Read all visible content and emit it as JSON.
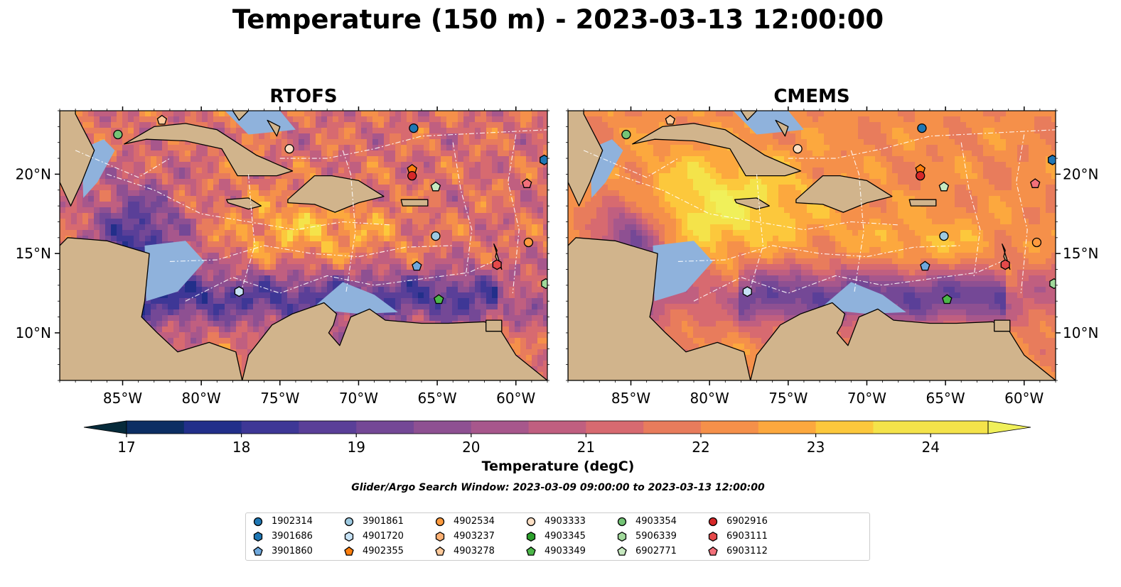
{
  "figure": {
    "title": "Temperature (150 m) - 2023-03-13 12:00:00",
    "panels": [
      "RTOFS",
      "CMEMS"
    ],
    "lon_ticks": [
      "85°W",
      "80°W",
      "75°W",
      "70°W",
      "65°W",
      "60°W"
    ],
    "lat_ticks": [
      "20°N",
      "15°N",
      "10°N"
    ],
    "colorbar": {
      "label": "Temperature (degC)",
      "ticks": [
        "17",
        "18",
        "19",
        "20",
        "21",
        "22",
        "23",
        "24"
      ],
      "min": 16.75,
      "max": 24.5,
      "step": 0.5,
      "colormap": "thermal",
      "colors": [
        "#062a3a",
        "#0c2e63",
        "#222f8a",
        "#3e3796",
        "#5a3f98",
        "#744896",
        "#8e5092",
        "#a7578c",
        "#c05f80",
        "#d76a70",
        "#e87c5c",
        "#f5904a",
        "#fca83e",
        "#fcc83c",
        "#f4e34a",
        "#f0f05a"
      ]
    },
    "search_window": "Glider/Argo Search Window: 2023-03-09 09:00:00 to 2023-03-13 12:00:00"
  },
  "map_colors": {
    "land": "#d1b48c",
    "shelf": "#8fb2dc",
    "deep_fill": "#062a3a",
    "eez_lines": "#ffffff"
  },
  "legend": {
    "items": [
      {
        "id": "1902314",
        "shape": "circle",
        "color": "#1f77b4"
      },
      {
        "id": "3901686",
        "shape": "hexagon",
        "color": "#1f77b4"
      },
      {
        "id": "3901860",
        "shape": "pentagon",
        "color": "#6fa8dc"
      },
      {
        "id": "3901861",
        "shape": "circle",
        "color": "#9ecae1"
      },
      {
        "id": "4901720",
        "shape": "hexagon",
        "color": "#c6e2f5"
      },
      {
        "id": "4902355",
        "shape": "pentagon",
        "color": "#ff7f0e"
      },
      {
        "id": "4902534",
        "shape": "circle",
        "color": "#fd9a3e"
      },
      {
        "id": "4903237",
        "shape": "hexagon",
        "color": "#fdb174"
      },
      {
        "id": "4903278",
        "shape": "pentagon",
        "color": "#fdc99a"
      },
      {
        "id": "4903333",
        "shape": "circle",
        "color": "#fde0c5"
      },
      {
        "id": "4903345",
        "shape": "hexagon",
        "color": "#2ca02c"
      },
      {
        "id": "4903349",
        "shape": "pentagon",
        "color": "#4cb749"
      },
      {
        "id": "4903354",
        "shape": "circle",
        "color": "#74c476"
      },
      {
        "id": "5906339",
        "shape": "hexagon",
        "color": "#a1d99b"
      },
      {
        "id": "6902771",
        "shape": "pentagon",
        "color": "#c7e9c0"
      },
      {
        "id": "6902916",
        "shape": "circle",
        "color": "#d62728"
      },
      {
        "id": "6903111",
        "shape": "hexagon",
        "color": "#e5494a"
      },
      {
        "id": "6903112",
        "shape": "pentagon",
        "color": "#f2707a"
      }
    ]
  },
  "floats": [
    {
      "id": "4903354",
      "lon": -85.3,
      "lat": 22.5
    },
    {
      "id": "4903278",
      "lon": -82.5,
      "lat": 23.4
    },
    {
      "id": "4903333",
      "lon": -74.4,
      "lat": 21.6
    },
    {
      "id": "1902314",
      "lon": -66.5,
      "lat": 22.9
    },
    {
      "id": "4902355",
      "lon": -66.6,
      "lat": 20.3
    },
    {
      "id": "6902916",
      "lon": -66.6,
      "lat": 19.9
    },
    {
      "id": "6902771",
      "lon": -65.1,
      "lat": 19.2
    },
    {
      "id": "3901686",
      "lon": -58.2,
      "lat": 20.9
    },
    {
      "id": "6903112",
      "lon": -59.3,
      "lat": 19.4
    },
    {
      "id": "3901861",
      "lon": -65.1,
      "lat": 16.1
    },
    {
      "id": "4902534",
      "lon": -59.2,
      "lat": 15.7
    },
    {
      "id": "3901860",
      "lon": -66.3,
      "lat": 14.2
    },
    {
      "id": "6903111",
      "lon": -61.2,
      "lat": 14.3
    },
    {
      "id": "4901720",
      "lon": -77.6,
      "lat": 12.6
    },
    {
      "id": "4903349",
      "lon": -64.9,
      "lat": 12.1
    },
    {
      "id": "5906339",
      "lon": -58.1,
      "lat": 13.1
    }
  ]
}
